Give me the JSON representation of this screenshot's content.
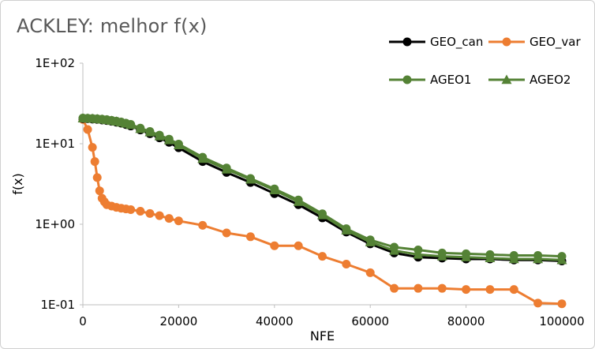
{
  "chart_data": {
    "type": "line",
    "title": "ACKLEY: melhor f(x)",
    "xlabel": "NFE",
    "ylabel": "f(x)",
    "xlim": [
      0,
      100000
    ],
    "ylim": [
      0.1,
      100
    ],
    "yscale": "log",
    "grid": false,
    "legend_position": "top-right",
    "x_ticks": [
      "0",
      "20000",
      "40000",
      "60000",
      "80000",
      "100000"
    ],
    "y_ticks": [
      "1E+02",
      "1E+01",
      "1E+00",
      "1E-01"
    ],
    "series": [
      {
        "name": "GEO_can",
        "color": "#000000",
        "marker": "circle",
        "x": [
          0,
          1000,
          2000,
          3000,
          4000,
          5000,
          6000,
          7000,
          8000,
          9000,
          10000,
          12000,
          14000,
          16000,
          18000,
          20000,
          25000,
          30000,
          35000,
          40000,
          45000,
          50000,
          55000,
          60000,
          65000,
          70000,
          75000,
          80000,
          85000,
          90000,
          95000,
          100000
        ],
        "y": [
          20.5,
          20.4,
          20.2,
          20.0,
          19.7,
          19.4,
          19.0,
          18.5,
          18.0,
          17.3,
          16.6,
          14.8,
          13.3,
          11.8,
          10.4,
          8.9,
          6.0,
          4.4,
          3.3,
          2.4,
          1.75,
          1.2,
          0.8,
          0.57,
          0.44,
          0.39,
          0.38,
          0.37,
          0.37,
          0.36,
          0.36,
          0.35
        ]
      },
      {
        "name": "GEO_var",
        "color": "#ED7D31",
        "marker": "circle",
        "x": [
          0,
          1000,
          2000,
          2500,
          3000,
          3500,
          4000,
          4500,
          5000,
          6000,
          7000,
          8000,
          9000,
          10000,
          12000,
          14000,
          16000,
          18000,
          20000,
          25000,
          30000,
          35000,
          40000,
          45000,
          50000,
          55000,
          60000,
          65000,
          70000,
          75000,
          80000,
          85000,
          90000,
          95000,
          100000
        ],
        "y": [
          20.0,
          15.0,
          9.0,
          6.0,
          3.8,
          2.6,
          2.1,
          1.9,
          1.75,
          1.68,
          1.62,
          1.58,
          1.55,
          1.52,
          1.45,
          1.36,
          1.28,
          1.18,
          1.1,
          0.97,
          0.78,
          0.7,
          0.54,
          0.54,
          0.4,
          0.32,
          0.25,
          0.16,
          0.16,
          0.16,
          0.155,
          0.155,
          0.155,
          0.105,
          0.103
        ]
      },
      {
        "name": "AGEO1",
        "color": "#548235",
        "marker": "circle",
        "x": [
          0,
          1000,
          2000,
          3000,
          4000,
          5000,
          6000,
          7000,
          8000,
          9000,
          10000,
          12000,
          14000,
          16000,
          18000,
          20000,
          25000,
          30000,
          35000,
          40000,
          45000,
          50000,
          55000,
          60000,
          65000,
          70000,
          75000,
          80000,
          85000,
          90000,
          95000,
          100000
        ],
        "y": [
          20.8,
          20.7,
          20.6,
          20.4,
          20.2,
          19.9,
          19.5,
          19.1,
          18.6,
          18.0,
          17.4,
          15.6,
          14.2,
          12.8,
          11.4,
          9.9,
          6.8,
          5.0,
          3.7,
          2.75,
          2.0,
          1.35,
          0.88,
          0.64,
          0.52,
          0.48,
          0.44,
          0.43,
          0.42,
          0.41,
          0.41,
          0.4
        ]
      },
      {
        "name": "AGEO2",
        "color": "#548235",
        "marker": "triangle",
        "x": [
          0,
          1000,
          2000,
          3000,
          4000,
          5000,
          6000,
          7000,
          8000,
          9000,
          10000,
          12000,
          14000,
          16000,
          18000,
          20000,
          25000,
          30000,
          35000,
          40000,
          45000,
          50000,
          55000,
          60000,
          65000,
          70000,
          75000,
          80000,
          85000,
          90000,
          95000,
          100000
        ],
        "y": [
          20.7,
          20.6,
          20.5,
          20.3,
          20.0,
          19.7,
          19.3,
          18.9,
          18.4,
          17.8,
          17.1,
          15.3,
          13.9,
          12.4,
          11.1,
          9.6,
          6.5,
          4.8,
          3.6,
          2.65,
          1.9,
          1.3,
          0.84,
          0.6,
          0.47,
          0.42,
          0.4,
          0.39,
          0.38,
          0.37,
          0.37,
          0.36
        ]
      }
    ]
  }
}
